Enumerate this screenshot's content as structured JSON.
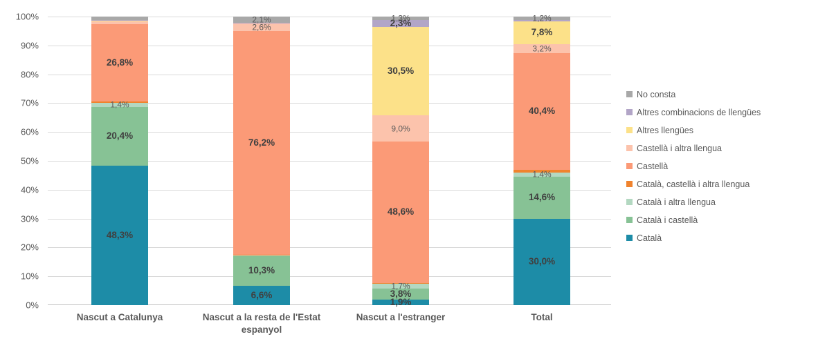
{
  "chart_data": {
    "type": "bar",
    "variant": "stacked-100-percent",
    "title": "",
    "xlabel": "",
    "ylabel": "",
    "ylim": [
      0,
      100
    ],
    "grid": true,
    "legend_position": "right",
    "y_ticks": [
      "100%",
      "90%",
      "80%",
      "70%",
      "60%",
      "50%",
      "40%",
      "30%",
      "20%",
      "10%",
      "0%"
    ],
    "categories": [
      "Nascut a Catalunya",
      "Nascut a la resta de l'Estat espanyol",
      "Nascut a l'estranger",
      "Total"
    ],
    "series": [
      {
        "name": "Català",
        "color": "#1d8ca7",
        "bold_labels": true,
        "values": [
          48.3,
          6.6,
          1.9,
          30.0
        ],
        "labels": [
          "48,3%",
          "6,6%",
          "1,9%",
          "30,0%"
        ]
      },
      {
        "name": "Català i castellà",
        "color": "#87c295",
        "bold_labels": true,
        "values": [
          20.4,
          10.3,
          3.8,
          14.6
        ],
        "labels": [
          "20,4%",
          "10,3%",
          "3,8%",
          "14,6%"
        ]
      },
      {
        "name": "Català i altra llengua",
        "color": "#b3d8c1",
        "bold_labels": false,
        "values": [
          1.4,
          0.1,
          1.7,
          1.4
        ],
        "labels": [
          "1,4%",
          "",
          "1,7%",
          "1,4%"
        ]
      },
      {
        "name": "Català, castellà i altra llengua",
        "color": "#f0832d",
        "bold_labels": false,
        "values": [
          0.5,
          0.1,
          0.3,
          0.9
        ],
        "labels": [
          "",
          "",
          "",
          ""
        ]
      },
      {
        "name": "Castellà",
        "color": "#fb9a77",
        "bold_labels": true,
        "values": [
          26.8,
          76.2,
          48.6,
          40.4
        ],
        "labels": [
          "26,8%",
          "76,2%",
          "48,6%",
          "40,4%"
        ]
      },
      {
        "name": "Castellà i altra llengua",
        "color": "#fcc3ac",
        "bold_labels": false,
        "values": [
          1.0,
          2.6,
          9.0,
          3.2
        ],
        "labels": [
          "",
          "2,6%",
          "9,0%",
          "3,2%"
        ]
      },
      {
        "name": "Altres llengües",
        "color": "#fce189",
        "bold_labels": true,
        "values": [
          0.25,
          0.1,
          30.5,
          7.8
        ],
        "labels": [
          "",
          "",
          "30,5%",
          "7,8%"
        ]
      },
      {
        "name": "Altres combinacions de llengües",
        "color": "#b2a5c7",
        "bold_labels": true,
        "values": [
          0.25,
          0.1,
          2.3,
          0.5
        ],
        "labels": [
          "",
          "",
          "2,3%",
          ""
        ]
      },
      {
        "name": "No consta",
        "color": "#a8a8a8",
        "bold_labels": false,
        "values": [
          1.1,
          2.1,
          1.3,
          1.2
        ],
        "labels": [
          "",
          "2,1%",
          "1,3%",
          "1,2%"
        ]
      }
    ],
    "legend_entries_top_to_bottom": [
      "No consta",
      "Altres combinacions de llengües",
      "Altres llengües",
      "Castellà i altra llengua",
      "Castellà",
      "Català, castellà i altra llengua",
      "Català i altra llengua",
      "Català i castellà",
      "Català"
    ],
    "colors": {
      "axis_text": "#595959",
      "gridline": "#d9d9d9",
      "bold_data_label": "#404040",
      "regular_data_label": "#595959"
    }
  }
}
